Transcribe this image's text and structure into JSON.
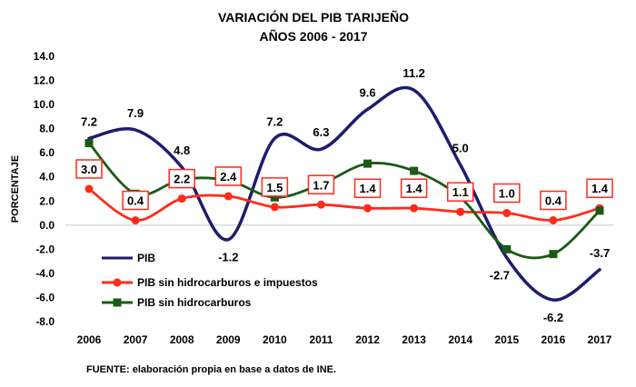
{
  "chart_data": {
    "type": "line",
    "title": "VARIACIÓN DEL PIB TARIJEÑO",
    "subtitle": "AÑOS 2006 - 2017",
    "ylabel": "PORCENTAJE",
    "xlabel": "",
    "ylim": [
      -8.0,
      14.0
    ],
    "yticks": [
      "14.0",
      "12.0",
      "10.0",
      "8.0",
      "6.0",
      "4.0",
      "2.0",
      "0.0",
      "-2.0",
      "-4.0",
      "-6.0",
      "-8.0"
    ],
    "categories": [
      "2006",
      "2007",
      "2008",
      "2009",
      "2010",
      "2011",
      "2012",
      "2013",
      "2014",
      "2015",
      "2016",
      "2017"
    ],
    "series": [
      {
        "name": "PIB",
        "color": "#1f1b6e",
        "marker": "none",
        "values": [
          7.2,
          7.9,
          4.8,
          -1.2,
          7.2,
          6.3,
          9.6,
          11.2,
          5.0,
          -2.7,
          -6.2,
          -3.7
        ],
        "labels": [
          "7.2",
          "7.9",
          "4.8",
          "-1.2",
          "7.2",
          "6.3",
          "9.6",
          "11.2",
          "5.0",
          "-2.7",
          "-6.2",
          "-3.7"
        ]
      },
      {
        "name": "PIB sin hidrocarburos e impuestos",
        "color": "#ff2a1a",
        "marker": "circle",
        "values": [
          3.0,
          0.4,
          2.2,
          2.4,
          1.5,
          1.7,
          1.4,
          1.4,
          1.1,
          1.0,
          0.4,
          1.4
        ],
        "labels": [
          "3.0",
          "0.4",
          "2.2",
          "2.4",
          "1.5",
          "1.7",
          "1.4",
          "1.4",
          "1.1",
          "1.0",
          "0.4",
          "1.4"
        ]
      },
      {
        "name": "PIB sin hidrocarburos",
        "color": "#1a5a14",
        "marker": "square",
        "values": [
          6.8,
          2.6,
          3.8,
          3.7,
          2.3,
          3.4,
          5.1,
          4.5,
          2.3,
          -2.0,
          -2.4,
          1.2
        ]
      }
    ],
    "legend_position": "bottom-left",
    "grid": false,
    "source": "FUENTE: elaboración propia en base a datos de INE."
  }
}
